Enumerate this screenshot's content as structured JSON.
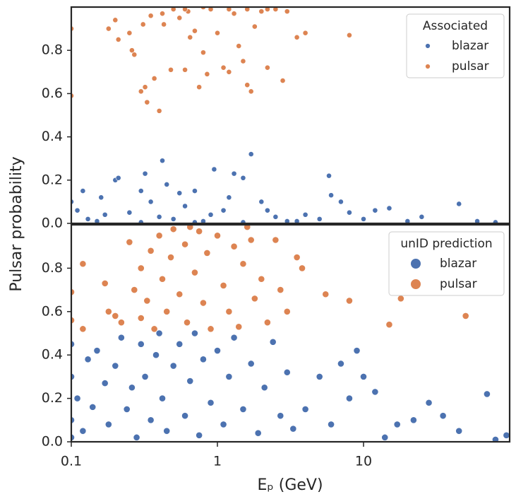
{
  "chart_data": [
    {
      "type": "scatter",
      "ylabel": "Pulsar probability",
      "legend_title": "Associated",
      "legend": "upper right",
      "xscale": "log",
      "xlim": [
        0.1,
        100
      ],
      "ylim": [
        0,
        1.0
      ],
      "yticks": [
        {
          "value": 0,
          "label": "0.0"
        },
        0.2,
        0.4,
        0.6,
        0.8
      ],
      "series": [
        {
          "name": "blazar",
          "color": "#4c72b0",
          "x": [
            0.1,
            0.11,
            0.12,
            0.13,
            0.16,
            0.17,
            0.2,
            0.21,
            0.25,
            0.3,
            0.32,
            0.35,
            0.4,
            0.42,
            0.45,
            0.5,
            0.55,
            0.6,
            0.7,
            0.8,
            0.95,
            1.1,
            1.3,
            1.5,
            1.7,
            2,
            2.5,
            3,
            4,
            5,
            5.8,
            6,
            7,
            8,
            10,
            12,
            15,
            20,
            25,
            45,
            60,
            80,
            0.7,
            0.3,
            1.5,
            3.5,
            0.15,
            0.9,
            2.2,
            1.2
          ],
          "values": [
            0.1,
            0.06,
            0.15,
            0.02,
            0.12,
            0.04,
            0.2,
            0.21,
            0.05,
            0.15,
            0.23,
            0.1,
            0.03,
            0.29,
            0.18,
            0.02,
            0.14,
            0.08,
            0.15,
            0.01,
            0.25,
            0.06,
            0.23,
            0.21,
            0.32,
            0.1,
            0.03,
            0.01,
            0.04,
            0.02,
            0.22,
            0.13,
            0.1,
            0.05,
            0.02,
            0.06,
            0.07,
            0.01,
            0.03,
            0.09,
            0.01,
            0.005,
            0.005,
            0.005,
            0.005,
            0.01,
            0.01,
            0.04,
            0.06,
            0.12
          ]
        },
        {
          "name": "pulsar",
          "color": "#dd8452",
          "x": [
            0.1,
            0.1,
            0.18,
            0.2,
            0.21,
            0.25,
            0.26,
            0.27,
            0.3,
            0.31,
            0.32,
            0.33,
            0.35,
            0.37,
            0.4,
            0.42,
            0.43,
            0.48,
            0.5,
            0.55,
            0.6,
            0.63,
            0.7,
            0.75,
            0.8,
            0.85,
            0.9,
            1.0,
            1.1,
            1.2,
            1.3,
            1.4,
            1.5,
            1.6,
            1.7,
            1.8,
            2.0,
            2.2,
            2.5,
            2.8,
            3,
            3.5,
            4,
            8,
            0.6,
            1.2,
            2.2,
            1.6,
            0.8,
            0.65
          ],
          "values": [
            0.9,
            0.59,
            0.9,
            0.94,
            0.85,
            0.88,
            0.8,
            0.78,
            0.61,
            0.92,
            0.63,
            0.56,
            0.96,
            0.67,
            0.52,
            0.97,
            0.92,
            0.71,
            0.99,
            0.95,
            0.71,
            0.98,
            0.89,
            0.63,
            0.79,
            0.69,
            0.99,
            0.88,
            0.72,
            0.7,
            0.97,
            0.82,
            0.75,
            0.64,
            0.61,
            0.91,
            0.98,
            0.72,
            0.99,
            0.66,
            0.98,
            0.86,
            0.88,
            0.87,
            0.99,
            0.99,
            0.99,
            0.99,
            1.0,
            0.86
          ]
        }
      ]
    },
    {
      "type": "scatter",
      "xlabel": "Eₚ  (GeV)",
      "legend_title": "unID prediction",
      "legend": "upper right",
      "xscale": "log",
      "xlim": [
        0.1,
        100
      ],
      "ylim": [
        0,
        1.0
      ],
      "xticks": [
        0.1,
        1,
        10
      ],
      "yticks": [
        {
          "value": 0,
          "label": "0.0"
        },
        0.2,
        0.4,
        0.6,
        0.8
      ],
      "series": [
        {
          "name": "blazar",
          "color": "#4c72b0",
          "x": [
            0.1,
            0.1,
            0.1,
            0.1,
            0.11,
            0.12,
            0.13,
            0.14,
            0.15,
            0.17,
            0.18,
            0.2,
            0.22,
            0.24,
            0.26,
            0.28,
            0.3,
            0.32,
            0.35,
            0.38,
            0.4,
            0.42,
            0.45,
            0.5,
            0.55,
            0.6,
            0.65,
            0.7,
            0.75,
            0.8,
            0.9,
            1.0,
            1.1,
            1.2,
            1.3,
            1.5,
            1.7,
            1.9,
            2.1,
            2.4,
            2.7,
            3,
            3.3,
            4,
            5,
            6,
            7,
            8,
            9,
            10,
            12,
            14,
            17,
            22,
            28,
            35,
            45,
            70,
            80,
            95
          ],
          "values": [
            0.45,
            0.3,
            0.1,
            0.02,
            0.2,
            0.05,
            0.38,
            0.16,
            0.42,
            0.27,
            0.08,
            0.35,
            0.48,
            0.15,
            0.25,
            0.02,
            0.45,
            0.3,
            0.1,
            0.4,
            0.5,
            0.2,
            0.05,
            0.35,
            0.45,
            0.12,
            0.28,
            0.5,
            0.03,
            0.38,
            0.18,
            0.42,
            0.08,
            0.3,
            0.48,
            0.15,
            0.36,
            0.04,
            0.25,
            0.46,
            0.12,
            0.32,
            0.06,
            0.15,
            0.3,
            0.08,
            0.36,
            0.2,
            0.42,
            0.3,
            0.23,
            0.02,
            0.08,
            0.1,
            0.18,
            0.12,
            0.05,
            0.22,
            0.01,
            0.03
          ]
        },
        {
          "name": "pulsar",
          "color": "#dd8452",
          "x": [
            0.1,
            0.1,
            0.12,
            0.12,
            0.17,
            0.18,
            0.2,
            0.22,
            0.25,
            0.27,
            0.3,
            0.3,
            0.33,
            0.35,
            0.37,
            0.4,
            0.42,
            0.45,
            0.48,
            0.5,
            0.55,
            0.6,
            0.62,
            0.7,
            0.75,
            0.8,
            0.85,
            0.9,
            1.0,
            1.1,
            1.2,
            1.3,
            1.4,
            1.5,
            1.6,
            1.8,
            2.0,
            2.2,
            2.5,
            2.7,
            3,
            3.5,
            3.8,
            5.5,
            8,
            15,
            18,
            50,
            0.65,
            1.7
          ],
          "values": [
            0.69,
            0.56,
            0.82,
            0.52,
            0.73,
            0.6,
            0.58,
            0.55,
            0.92,
            0.7,
            0.8,
            0.57,
            0.65,
            0.88,
            0.52,
            0.95,
            0.75,
            0.6,
            0.85,
            0.98,
            0.68,
            0.91,
            0.55,
            0.78,
            0.97,
            0.64,
            0.87,
            0.52,
            0.95,
            0.72,
            0.6,
            0.9,
            0.53,
            0.82,
            0.99,
            0.66,
            0.75,
            0.55,
            0.93,
            0.7,
            0.6,
            0.85,
            0.8,
            0.68,
            0.65,
            0.54,
            0.66,
            0.58,
            0.99,
            0.93
          ]
        }
      ]
    }
  ]
}
